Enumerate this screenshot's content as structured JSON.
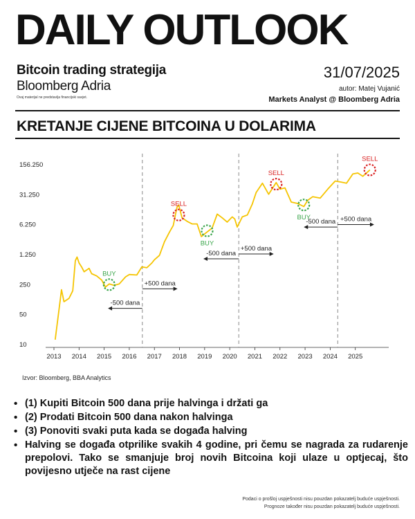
{
  "header": {
    "title": "DAILY OUTLOOK",
    "subtitle_bold": "Bitcoin trading strategija",
    "subtitle_brand": "Bloomberg Adria",
    "disclaimer_small": "Ovaj materijal ne predstavlja financijski savjet.",
    "date": "31/07/2025",
    "author": "autor: Matej Vujanić",
    "role": "Markets Analyst @ Bloomberg Adria"
  },
  "section_title": "KRETANJE CIJENE BITCOINA U DOLARIMA",
  "chart_data": {
    "type": "line",
    "title": "KRETANJE CIJENE BITCOINA U DOLARIMA",
    "xlabel": "",
    "ylabel": "",
    "y_scale": "log",
    "ylim": [
      10,
      156250
    ],
    "xlim": [
      2013.0,
      2026.0
    ],
    "line_color": "#f5c400",
    "y_ticks": [
      10,
      50,
      250,
      1250,
      6250,
      31250,
      156250
    ],
    "y_tick_labels": [
      "10",
      "50",
      "250",
      "1.250",
      "6.250",
      "31.250",
      "156.250"
    ],
    "x_ticks": [
      2013,
      2014,
      2015,
      2016,
      2017,
      2018,
      2019,
      2020,
      2021,
      2022,
      2023,
      2024,
      2025
    ],
    "x_tick_labels": [
      "2013",
      "2014",
      "2015",
      "2016",
      "2017",
      "2018",
      "2019",
      "2020",
      "2021",
      "2022",
      "2023",
      "2024",
      "2025"
    ],
    "series": [
      {
        "x": [
          2013.05,
          2013.25,
          2013.3,
          2013.4,
          2013.6,
          2013.75,
          2013.85,
          2013.92,
          2014.0,
          2014.1,
          2014.2,
          2014.4,
          2014.5,
          2014.7,
          2014.9,
          2015.05,
          2015.2,
          2015.4,
          2015.6,
          2015.85,
          2016.0,
          2016.3,
          2016.5,
          2016.7,
          2016.9,
          2017.0,
          2017.2,
          2017.4,
          2017.6,
          2017.75,
          2017.9,
          2017.97,
          2018.1,
          2018.3,
          2018.5,
          2018.7,
          2018.87,
          2019.0,
          2019.3,
          2019.5,
          2019.7,
          2019.9,
          2020.1,
          2020.2,
          2020.3,
          2020.5,
          2020.7,
          2020.9,
          2021.05,
          2021.3,
          2021.55,
          2021.85,
          2022.0,
          2022.2,
          2022.45,
          2022.7,
          2022.95,
          2023.1,
          2023.3,
          2023.6,
          2023.9,
          2024.2,
          2024.4,
          2024.65,
          2024.9,
          2025.1,
          2025.3,
          2025.58
        ],
        "y": [
          13,
          110,
          190,
          100,
          120,
          180,
          900,
          1100,
          800,
          650,
          500,
          600,
          450,
          400,
          320,
          220,
          260,
          240,
          260,
          380,
          430,
          420,
          650,
          620,
          800,
          950,
          1200,
          2500,
          4200,
          6000,
          16000,
          18000,
          9000,
          7500,
          6500,
          6500,
          3300,
          3800,
          5200,
          11000,
          9000,
          7200,
          9500,
          8500,
          5500,
          9500,
          10500,
          19000,
          35000,
          58000,
          32000,
          60000,
          42000,
          45000,
          21000,
          19500,
          16500,
          23000,
          28000,
          26000,
          42000,
          65000,
          62000,
          58000,
          95000,
          100000,
          84000,
          118000
        ]
      }
    ],
    "halvings_x": [
      2016.52,
      2020.36,
      2024.3
    ],
    "signals": [
      {
        "label": "BUY",
        "x": 2015.2,
        "y": 250,
        "color": "#3aa54a"
      },
      {
        "label": "SELL",
        "x": 2017.97,
        "y": 10500,
        "color": "#d92020"
      },
      {
        "label": "BUY",
        "x": 2019.1,
        "y": 4500,
        "color": "#3aa54a"
      },
      {
        "label": "SELL",
        "x": 2021.85,
        "y": 55000,
        "color": "#d92020"
      },
      {
        "label": "BUY",
        "x": 2022.95,
        "y": 18000,
        "color": "#3aa54a"
      },
      {
        "label": "SELL",
        "x": 2025.58,
        "y": 118000,
        "color": "#d92020"
      }
    ],
    "arrows": [
      {
        "label": "-500 dana",
        "x_from": 2016.52,
        "x_to": 2015.15,
        "y": 70
      },
      {
        "label": "+500 dana",
        "x_from": 2016.52,
        "x_to": 2017.92,
        "y": 200
      },
      {
        "label": "-500 dana",
        "x_from": 2020.36,
        "x_to": 2018.95,
        "y": 1000
      },
      {
        "label": "+500 dana",
        "x_from": 2020.36,
        "x_to": 2021.75,
        "y": 1300
      },
      {
        "label": "-500 dana",
        "x_from": 2024.3,
        "x_to": 2022.95,
        "y": 5500
      },
      {
        "label": "+500 dana",
        "x_from": 2024.3,
        "x_to": 2025.75,
        "y": 6300
      }
    ]
  },
  "source": "Izvor: Bloomberg, BBA Analytics",
  "bullets": [
    "(1) Kupiti Bitcoin 500 dana prije halvinga i držati ga",
    "(2) Prodati Bitcoin 500 dana nakon halvinga",
    "(3) Ponoviti svaki puta kada se događa halving",
    "Halving se događa otprilike svakih 4 godine, pri čemu se nagrada za rudarenje prepolovi. Tako se smanjuje broj novih Bitcoina koji ulaze u optjecaj, što povijesno utječe na rast cijene"
  ],
  "footer": {
    "line1": "Podaci o prošlој uspješnosti nisu pouzdan pokazatelj buduće uspješnosti.",
    "line2": "Prognoze također nisu pouzdan pokazatelj buduće uspješnosti."
  }
}
